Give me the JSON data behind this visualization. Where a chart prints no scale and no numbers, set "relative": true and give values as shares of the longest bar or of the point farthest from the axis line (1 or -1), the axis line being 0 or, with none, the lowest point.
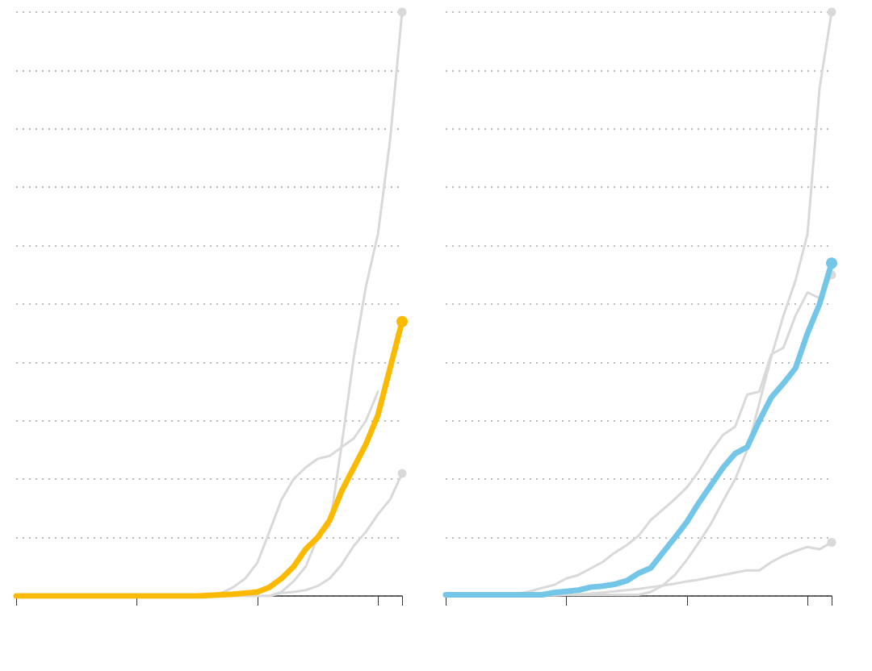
{
  "chart_data": [
    {
      "type": "line",
      "relative": true,
      "grid": "y",
      "line_style": "solid",
      "categories": [
        null,
        null,
        null,
        null,
        null,
        null,
        null,
        null,
        null,
        null,
        null,
        null,
        null,
        null,
        null,
        null,
        null,
        null,
        null,
        null,
        null,
        null,
        null,
        null,
        null,
        null,
        null,
        null,
        null,
        null,
        null,
        null,
        null
      ],
      "series": [
        {
          "color": "#d9d9d9",
          "values": [
            0,
            0,
            0,
            0,
            0,
            0,
            0,
            0,
            0,
            0,
            0,
            0,
            0,
            0,
            0,
            0,
            0,
            0,
            0,
            0,
            0,
            0,
            0.007,
            0.025,
            0.05,
            0.1,
            0.12,
            0.26,
            0.41,
            0.53,
            0.62,
            0.78,
            1.0
          ]
        },
        {
          "color": "#d9d9d9",
          "values": [
            0,
            0,
            0,
            0,
            0,
            0,
            0,
            0,
            0,
            0,
            0,
            0,
            0,
            0,
            0,
            0,
            0,
            0.005,
            0.015,
            0.03,
            0.057,
            0.11,
            0.165,
            0.2,
            0.22,
            0.235,
            0.24,
            0.255,
            0.27,
            0.3,
            0.35,
            null,
            null
          ]
        },
        {
          "color": "#d9d9d9",
          "values": [
            0,
            0,
            0,
            0,
            0,
            0,
            0,
            0,
            0,
            0,
            0,
            0,
            0,
            0,
            0,
            0,
            0,
            0,
            0,
            0,
            0,
            0,
            0.005,
            0.007,
            0.01,
            0.017,
            0.03,
            0.054,
            0.086,
            0.11,
            0.14,
            0.165,
            0.21
          ]
        },
        {
          "color": "#fbb900",
          "values": [
            0,
            0,
            0,
            0,
            0,
            0,
            0,
            0,
            0,
            0,
            0,
            0,
            0,
            0,
            0,
            0,
            0.001,
            0.002,
            0.003,
            0.005,
            0.007,
            0.015,
            0.03,
            0.05,
            0.08,
            0.1,
            0.13,
            0.18,
            0.22,
            0.26,
            0.31,
            0.39,
            0.47
          ]
        }
      ]
    },
    {
      "type": "line",
      "relative": true,
      "grid": "y",
      "line_style": "solid",
      "categories": [
        null,
        null,
        null,
        null,
        null,
        null,
        null,
        null,
        null,
        null,
        null,
        null,
        null,
        null,
        null,
        null,
        null,
        null,
        null,
        null,
        null,
        null,
        null,
        null,
        null,
        null,
        null,
        null,
        null,
        null,
        null,
        null,
        null
      ],
      "series": [
        {
          "color": "#d9d9d9",
          "values": [
            0.002,
            0.002,
            0.002,
            0.002,
            0.002,
            0.002,
            0.002,
            0.002,
            0.002,
            0.002,
            0.002,
            0.002,
            0.002,
            0.002,
            0.002,
            0.002,
            0.002,
            0.007,
            0.018,
            0.036,
            0.062,
            0.092,
            0.124,
            0.163,
            0.2,
            0.25,
            0.33,
            0.41,
            0.48,
            0.54,
            0.62,
            0.87,
            1.0
          ]
        },
        {
          "color": "#d9d9d9",
          "values": [
            0.002,
            0.002,
            0.002,
            0.002,
            0.002,
            0.002,
            0.004,
            0.008,
            0.014,
            0.019,
            0.03,
            0.036,
            0.047,
            0.058,
            0.074,
            0.087,
            0.103,
            0.13,
            0.148,
            0.166,
            0.186,
            0.214,
            0.248,
            0.276,
            0.29,
            0.345,
            0.35,
            0.414,
            0.425,
            0.48,
            0.52,
            0.51,
            0.55
          ]
        },
        {
          "color": "#d9d9d9",
          "values": [
            0.001,
            0.001,
            0.001,
            0.001,
            0.001,
            0.001,
            0.001,
            0.001,
            0.001,
            0.001,
            0.002,
            0.003,
            0.004,
            0.006,
            0.008,
            0.01,
            0.012,
            0.015,
            0.018,
            0.021,
            0.025,
            0.028,
            0.032,
            0.036,
            0.04,
            0.044,
            0.044,
            0.058,
            0.069,
            0.077,
            0.084,
            0.08,
            0.092
          ]
        },
        {
          "color": "#73c6e8",
          "values": [
            0.002,
            0.002,
            0.002,
            0.002,
            0.002,
            0.002,
            0.002,
            0.002,
            0.002,
            0.006,
            0.008,
            0.01,
            0.015,
            0.017,
            0.02,
            0.026,
            0.039,
            0.048,
            0.074,
            0.1,
            0.127,
            0.16,
            0.19,
            0.22,
            0.244,
            0.255,
            0.3,
            0.34,
            0.364,
            0.39,
            0.45,
            0.5,
            0.57
          ]
        }
      ]
    }
  ]
}
